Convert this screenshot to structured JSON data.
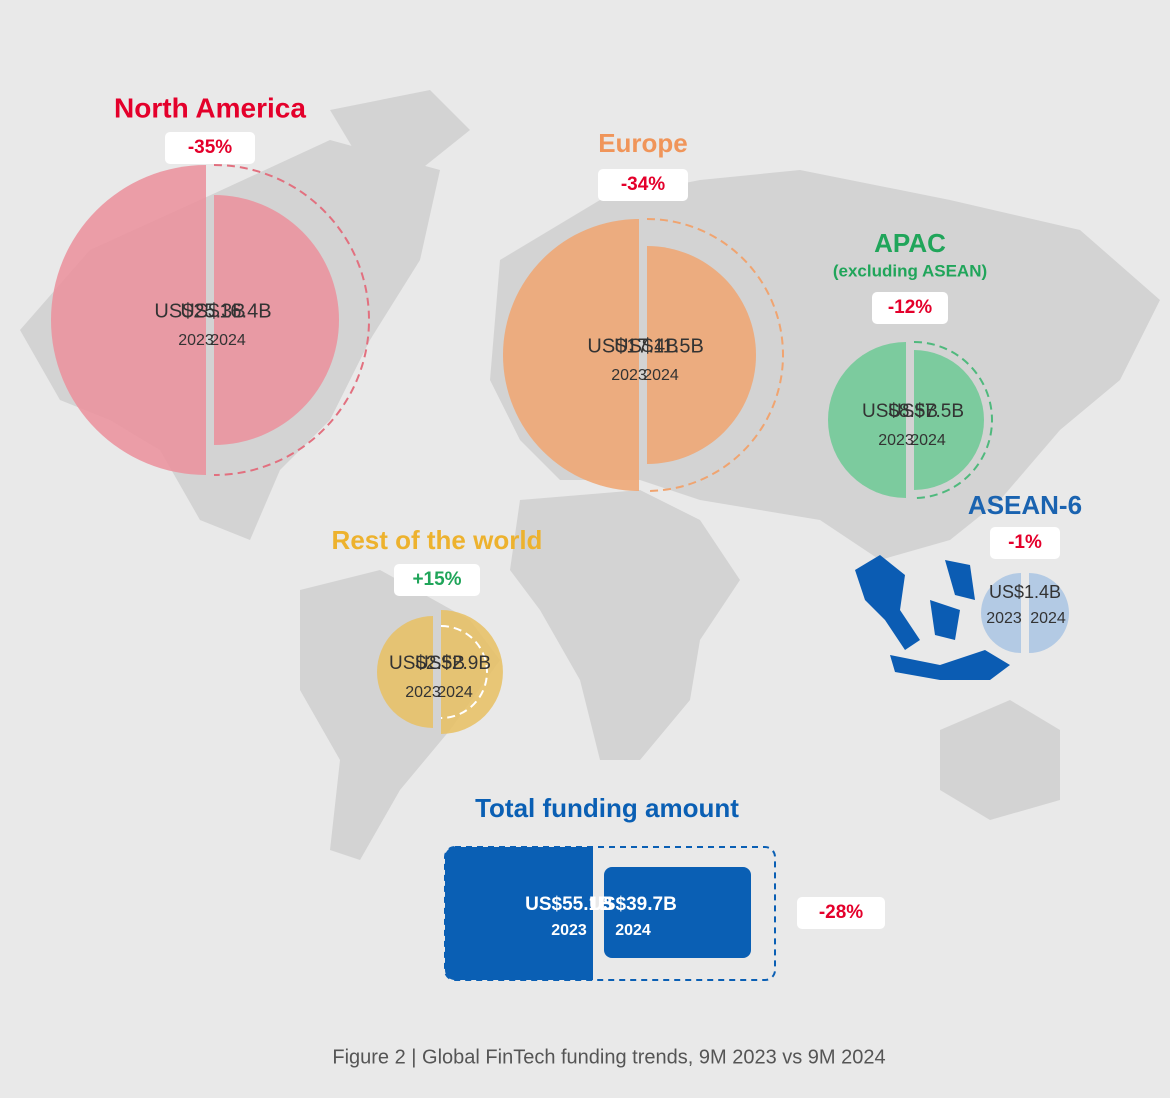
{
  "regions": [
    {
      "name": "North America",
      "change": "-35%",
      "left": {
        "value": "US$25.3B",
        "year": "2023"
      },
      "right": {
        "value": "US$16.4B",
        "year": "2024"
      }
    },
    {
      "name": "Europe",
      "change": "-34%",
      "left": {
        "value": "US$17.4B",
        "year": "2023"
      },
      "right": {
        "value": "US$11.5B",
        "year": "2024"
      }
    },
    {
      "name": "APAC",
      "subtitle": "(excluding ASEAN)",
      "change": "-12%",
      "left": {
        "value": "US$8.5B",
        "year": "2023"
      },
      "right": {
        "value": "US$7.5B",
        "year": "2024"
      }
    },
    {
      "name": "Rest of the world",
      "change": "+15%",
      "left": {
        "value": "US$2.5B",
        "year": "2023"
      },
      "right": {
        "value": "US$2.9B",
        "year": "2024"
      }
    },
    {
      "name": "ASEAN-6",
      "change": "-1%",
      "value": "US$1.4B",
      "left": {
        "year": "2023"
      },
      "right": {
        "year": "2024"
      }
    }
  ],
  "total": {
    "title": "Total funding amount",
    "change": "-28%",
    "left": {
      "value": "US$55.1B",
      "year": "2023"
    },
    "right": {
      "value": "US$39.7B",
      "year": "2024"
    }
  },
  "caption": "Figure 2 | Global FinTech funding trends, 9M 2023 vs 9M 2024"
}
